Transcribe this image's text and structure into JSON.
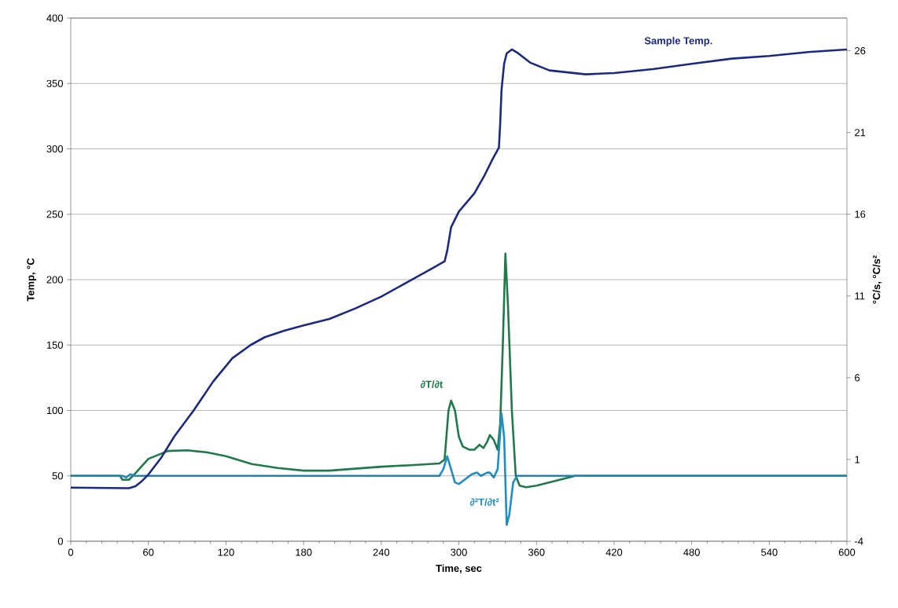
{
  "chart_data": {
    "type": "line",
    "xlabel": "Time, sec",
    "ylabel": "Temp, °C",
    "y2label": "°C/s, °C/s²",
    "xlim": [
      0,
      600
    ],
    "xticks": [
      0,
      60,
      120,
      180,
      240,
      300,
      360,
      420,
      480,
      540,
      600
    ],
    "ylim": [
      0,
      400
    ],
    "yticks": [
      0,
      50,
      100,
      150,
      200,
      250,
      300,
      350,
      400
    ],
    "y2lim": [
      -4,
      28
    ],
    "y2ticks": [
      -4,
      1,
      6,
      11,
      16,
      21,
      26
    ],
    "grid": "y",
    "series": [
      {
        "name": "Sample Temp.",
        "color": "#1b2a80",
        "x": [
          0,
          45,
          50,
          55,
          60,
          70,
          80,
          95,
          110,
          125,
          139,
          150,
          165,
          180,
          200,
          220,
          240,
          260,
          280,
          289,
          291,
          294,
          300,
          312,
          320,
          326,
          331,
          332,
          333,
          335,
          337,
          341,
          346,
          355,
          370,
          398,
          420,
          450,
          480,
          511,
          540,
          570,
          600
        ],
        "values": [
          41,
          40.5,
          42,
          46,
          51,
          64,
          80,
          100,
          122,
          140,
          150,
          156,
          161,
          165,
          170,
          178,
          187,
          198,
          209,
          214,
          222,
          240,
          252,
          266,
          280,
          292,
          301,
          320,
          345,
          365,
          373,
          376,
          373,
          366,
          360,
          357,
          358,
          361,
          365,
          369,
          371,
          374,
          376
        ]
      },
      {
        "name": "∂T/∂t",
        "color": "#1f7a4a",
        "axis": "y2",
        "x": [
          0,
          38,
          40,
          45,
          50,
          60,
          75,
          90,
          105,
          120,
          140,
          160,
          180,
          200,
          220,
          240,
          260,
          285,
          289,
          292,
          294,
          297,
          300,
          303,
          308,
          312,
          316,
          319,
          322,
          324,
          327,
          330,
          332,
          334,
          336,
          338,
          341,
          344,
          347,
          352,
          360,
          375,
          390,
          600
        ],
        "values": [
          0,
          0,
          -0.24,
          -0.24,
          0.16,
          1.04,
          1.52,
          1.56,
          1.44,
          1.2,
          0.72,
          0.48,
          0.32,
          0.32,
          0.44,
          0.56,
          0.64,
          0.76,
          1.0,
          4.0,
          4.6,
          4.0,
          2.4,
          1.8,
          1.6,
          1.6,
          1.9,
          1.7,
          2.1,
          2.5,
          2.2,
          1.6,
          3.2,
          8,
          13.6,
          10.4,
          4,
          0,
          -0.6,
          -0.7,
          -0.6,
          -0.3,
          0,
          0
        ]
      },
      {
        "name": "∂²T/∂t²",
        "color": "#1e8ec6",
        "axis": "y2",
        "x": [
          0,
          40,
          43,
          46,
          50,
          285,
          288,
          291,
          294,
          297,
          300,
          305,
          310,
          314,
          317,
          322,
          324,
          327,
          330,
          333,
          335,
          337,
          339,
          342,
          345,
          600
        ],
        "values": [
          0,
          0,
          -0.1,
          0.1,
          0,
          0,
          0.4,
          1.2,
          0.4,
          -0.4,
          -0.5,
          -0.2,
          0.1,
          0.2,
          0,
          0.2,
          0.2,
          -0.1,
          0.4,
          3.8,
          2.4,
          -3.0,
          -2.4,
          -0.4,
          0,
          0
        ]
      }
    ]
  }
}
